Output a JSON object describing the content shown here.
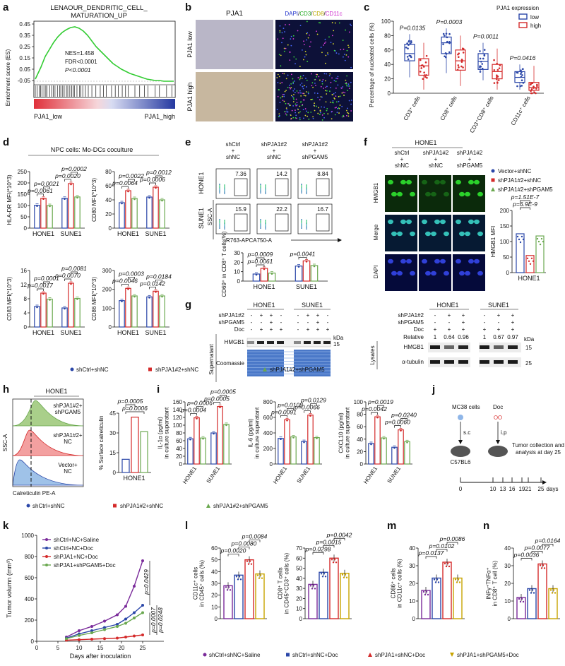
{
  "panel_letters": [
    "a",
    "b",
    "c",
    "d",
    "e",
    "f",
    "g",
    "h",
    "i",
    "j",
    "k",
    "l",
    "m",
    "n"
  ],
  "colors": {
    "blue": "#2a46a8",
    "red": "#d42a2a",
    "green": "#6aa84f",
    "purple": "#7a2a9a",
    "gsea_green": "#33cc33"
  },
  "a": {
    "title_line1": "LENAOUR_DENDRITIC_CELL_",
    "title_line2": "MATURATION_UP",
    "ylabel": "Enrichment score (ES)",
    "yticks": [
      "0.45",
      "0.35",
      "0.25",
      "0.15",
      "0.05",
      "-0.05"
    ],
    "stats": [
      "NES=1.458",
      "FDR<0.0001",
      "P<0.0001"
    ],
    "x_left": "PJA1_low",
    "x_right": "PJA1_high"
  },
  "b": {
    "title_left": "PJA1",
    "title_right_parts": [
      "DAPI",
      "/",
      "CD3",
      "/",
      "CD8",
      "/",
      "CD11c"
    ],
    "row_labels": [
      "PJA1 low",
      "PJA1 high"
    ]
  },
  "c": {
    "ylabel": "Percentage of nucleated cells (%)",
    "yticks": [
      "0",
      "20",
      "40",
      "60",
      "80",
      "100"
    ],
    "legend_title": "PJA1 expression",
    "legend": [
      "low",
      "high"
    ],
    "categories": [
      "CD3⁺ cells",
      "CD8⁺ cells",
      "CD3⁺CD8⁺ cells",
      "CD11c⁺ cells"
    ],
    "pvalues": [
      "P=0.0135",
      "P=0.0003",
      "P=0.0011",
      "P=0.0416"
    ],
    "chart_data": {
      "type": "box",
      "categories": [
        "CD3+ cells",
        "CD8+ cells",
        "CD3+CD8+ cells",
        "CD11c+ cells"
      ],
      "ylim": [
        0,
        100
      ],
      "series": [
        {
          "name": "low",
          "median": [
            55,
            70,
            44,
            22
          ],
          "q1": [
            45,
            55,
            33,
            15
          ],
          "q3": [
            68,
            78,
            55,
            30
          ],
          "min": [
            22,
            28,
            18,
            5
          ],
          "max": [
            82,
            90,
            70,
            40
          ]
        },
        {
          "name": "high",
          "median": [
            38,
            45,
            30,
            8
          ],
          "q1": [
            25,
            32,
            20,
            4
          ],
          "q3": [
            48,
            60,
            40,
            15
          ],
          "min": [
            5,
            10,
            5,
            0
          ],
          "max": [
            70,
            80,
            62,
            38
          ]
        }
      ]
    }
  },
  "d": {
    "header": "NPC cells: Mo-DCs coculture",
    "groups": [
      "HONE1",
      "SUNE1"
    ],
    "legend": [
      "shCtrl+shNC",
      "shPJA1#2+shNC",
      "shPJA1#2+shPGAM5"
    ],
    "charts": [
      {
        "ylabel": "HLA-DR MFI(*10^3)",
        "yticks": [
          "0",
          "50",
          "100",
          "150",
          "200",
          "250"
        ],
        "ylim": [
          0,
          250
        ],
        "values": [
          [
            101,
            132,
            100
          ],
          [
            132,
            197,
            138
          ]
        ],
        "pvals": [
          "p=0.0061",
          "p=0.0021",
          "p=0.0020",
          "p=0.0002"
        ]
      },
      {
        "ylabel": "CD80 MFI(*10^3)",
        "yticks": [
          "0",
          "20",
          "40",
          "60",
          "80"
        ],
        "ylim": [
          0,
          80
        ],
        "values": [
          [
            36,
            53,
            42
          ],
          [
            44,
            58,
            40
          ]
        ],
        "pvals": [
          "p=0.0064",
          "p=0.0022",
          "p=0.0006",
          "p=0.0012"
        ]
      },
      {
        "ylabel": "CD83 MFI(*10^3)",
        "yticks": [
          "0",
          "4",
          "8",
          "12",
          "16"
        ],
        "ylim": [
          0,
          16
        ],
        "values": [
          [
            5.8,
            9.6,
            7.9
          ],
          [
            5.4,
            12.4,
            8.1
          ]
        ],
        "pvals": [
          "p=0.0017",
          "p=0.0001",
          "p=0.0070",
          "p=0.0081"
        ]
      },
      {
        "ylabel": "CD86 MFI(*10^3)",
        "yticks": [
          "0",
          "100",
          "200",
          "300"
        ],
        "ylim": [
          0,
          300
        ],
        "values": [
          [
            140,
            205,
            165
          ],
          [
            160,
            190,
            165
          ]
        ],
        "pvals": [
          "p=0.0046",
          "p=0.0003",
          "p=0.0142",
          "p=0.0184"
        ]
      }
    ]
  },
  "e": {
    "columns": [
      "shCtrl\n+\nshNC",
      "shPJA1#2\n+\nshNC",
      "shPJA1#2\n+\nshPGAM5"
    ],
    "rows": [
      "HONE1",
      "SUNE1"
    ],
    "gate_values": [
      [
        "7.36",
        "14.2",
        "8.84"
      ],
      [
        "15.9",
        "22.2",
        "16.7"
      ]
    ],
    "yaxis": "SSC-A",
    "xaxis": "R763-APCA750-A",
    "bar_ylabel": "CD69⁺ in CD8⁺ T cells(%)",
    "yticks": [
      "0",
      "10",
      "20",
      "30"
    ],
    "ylim": [
      0,
      30
    ],
    "groups": [
      "HONE1",
      "SUNE1"
    ],
    "values": [
      [
        7.5,
        13.5,
        8.5
      ],
      [
        16.0,
        21.5,
        16.5
      ]
    ],
    "pvals": [
      "p=0.0009",
      "p=0.0061",
      "p=0.0041"
    ]
  },
  "f": {
    "title": "HONE1",
    "columns": [
      "shCtrl\n+\nshNC",
      "shPJA1#2\n+\nshNC",
      "shPJA1#2\n+\nshPGAM5"
    ],
    "rows": [
      "HMGB1",
      "Merge",
      "DAPI"
    ],
    "legend": [
      "Vector+shNC",
      "shPJA1#2+shNC",
      "shPJA1#2+shPGAM5"
    ],
    "ylabel": "HMGB1 MFI",
    "yticks": [
      "0",
      "50",
      "100",
      "150",
      "200"
    ],
    "ylim": [
      0,
      200
    ],
    "values": [
      125,
      55,
      118
    ],
    "pvals": [
      "p=1.51E-7",
      "p=6.9E-9"
    ],
    "group": "HONE1"
  },
  "g": {
    "left_groups": [
      "HONE1",
      "SUNE1"
    ],
    "rows": [
      "shPJA1#2",
      "shPGAM5",
      "Doc"
    ],
    "signs_left": [
      [
        "-",
        "+",
        "+",
        "-",
        "-",
        "+",
        "+",
        "-"
      ],
      [
        "-",
        "-",
        "+",
        "-",
        "-",
        "-",
        "+",
        "-"
      ],
      [
        "-",
        "+",
        "+",
        "+",
        "-",
        "+",
        "+",
        "+"
      ]
    ],
    "band_label": "HMGB1",
    "coomassie": "Coomassie",
    "supernatant": "Supernatant",
    "kda": "kDa",
    "marker_15": "15",
    "right_rows": [
      "shPJA1#2",
      "shPGAM5",
      "Doc"
    ],
    "relative_label": "Relative",
    "relative_values": [
      "1",
      "0.64",
      "0.96",
      "1",
      "0.67",
      "0.97"
    ],
    "lysates": "Lysates",
    "tubulin": "α-tubulin",
    "marker_25": "25"
  },
  "h": {
    "title": "HONE1",
    "labels": [
      "shPJA1#2+\nshPGAM5",
      "shPJA1#2+\nNC",
      "Vector+\nNC"
    ],
    "yaxis": "SSC-A",
    "xaxis": "Calreticulin  PE-A",
    "bar_ylabel": "% Surface calreticulin",
    "yticks": [
      "0",
      "15",
      "30",
      "45"
    ],
    "ylim": [
      0,
      45
    ],
    "values": [
      10,
      42,
      31
    ],
    "pvals": [
      "p=0.0005",
      "p=0.0006"
    ],
    "group": "HONE1"
  },
  "i": {
    "legend": [
      "shCtrl+shNC",
      "shPJA1#2+shNC",
      "shPJA1#2+shPGAM5"
    ],
    "groups": [
      "HONE1",
      "SUNE1"
    ],
    "charts": [
      {
        "ylabel": "IL-1α (pg/ml)\nin culture superatant",
        "yticks": [
          "0",
          "20",
          "40",
          "60",
          "80",
          "100",
          "120",
          "140",
          "160"
        ],
        "ylim": [
          0,
          160
        ],
        "values": [
          [
            65,
            119,
            67
          ],
          [
            80,
            148,
            102
          ]
        ],
        "pvals": [
          "p=0.0004",
          "p=0.0006",
          "p=0.0005",
          "p=0.0005"
        ]
      },
      {
        "ylabel": "IL-6 (pg/ml)\nin culture superatant",
        "yticks": [
          "0",
          "200",
          "400",
          "600",
          "800"
        ],
        "ylim": [
          0,
          800
        ],
        "values": [
          [
            330,
            570,
            350
          ],
          [
            290,
            630,
            340
          ]
        ],
        "pvals": [
          "p=0.0091",
          "p=0.0108",
          "p=0.0066",
          "p=0.0129"
        ]
      },
      {
        "ylabel": "CXCL10 (pg/ml)\nin culture superatant",
        "yticks": [
          "0",
          "20",
          "40",
          "60",
          "80",
          "100"
        ],
        "ylim": [
          0,
          100
        ],
        "values": [
          [
            33,
            76,
            42
          ],
          [
            27,
            55,
            36
          ]
        ],
        "pvals": [
          "p=0.0042",
          "p=0.0019",
          "p=0.0060",
          "p=0.0240"
        ]
      }
    ]
  },
  "j": {
    "mc38": "MC38 cells",
    "doc": "Doc",
    "sc": "s.c",
    "ip": "i.p",
    "mouse": "C57BL6",
    "collection": "Tumor collection and\nanalysis at day 25",
    "days": [
      "0",
      "10",
      "13",
      "16",
      "19",
      "21",
      "25"
    ],
    "days_label": "days"
  },
  "k": {
    "ylabel": "Tumor volumn (mm³)",
    "xlabel": "Days after inoculation",
    "yticks": [
      "0",
      "200",
      "400",
      "600",
      "800",
      "1000"
    ],
    "xticks": [
      "0",
      "5",
      "10",
      "15",
      "20",
      "25"
    ],
    "ylim": [
      0,
      1000
    ],
    "legend": [
      "shCtrl+NC+Saline",
      "shCtrl+NC+Doc",
      "shPJA1+NC+Doc",
      "shPJA1+shPGAM5+Doc"
    ],
    "pvals": [
      "p=0.0429",
      "p=0.0007",
      "p=0.0248"
    ],
    "chart_data": {
      "type": "line",
      "x": [
        7,
        10,
        13,
        16,
        19,
        21,
        23,
        25
      ],
      "series": [
        {
          "name": "shCtrl+NC+Saline",
          "values": [
            40,
            100,
            140,
            190,
            250,
            330,
            520,
            760
          ]
        },
        {
          "name": "shCtrl+NC+Doc",
          "values": [
            30,
            70,
            100,
            130,
            160,
            210,
            270,
            340
          ]
        },
        {
          "name": "shPJA1+NC+Doc",
          "values": [
            10,
            15,
            20,
            25,
            30,
            40,
            50,
            60
          ]
        },
        {
          "name": "shPJA1+shPGAM5+Doc",
          "values": [
            25,
            55,
            80,
            110,
            140,
            170,
            220,
            270
          ]
        }
      ]
    }
  },
  "l": {
    "charts": [
      {
        "ylabel": "CD11c⁺ cells\nin CD45⁺ cells (%)",
        "yticks": [
          "0",
          "10",
          "20",
          "30",
          "40",
          "50",
          "60"
        ],
        "ylim": [
          0,
          60
        ],
        "values": [
          28,
          37,
          50,
          38
        ],
        "pvals": [
          "p=0.0020",
          "p=0.0080",
          "p=0.0084"
        ]
      },
      {
        "ylabel": "CD8⁺ T cells\nin CD45⁺CD3⁺ cells (%)",
        "yticks": [
          "0",
          "10",
          "20",
          "30",
          "40",
          "50",
          "60",
          "70"
        ],
        "ylim": [
          0,
          70
        ],
        "values": [
          34,
          46,
          60,
          45
        ],
        "pvals": [
          "p=0.0298",
          "p=0.0015",
          "p=0.0042"
        ]
      }
    ]
  },
  "m": {
    "ylabel": "CD86⁺ cells\nin CD11c⁺ cells (%)",
    "yticks": [
      "0",
      "10",
      "20",
      "30",
      "40"
    ],
    "ylim": [
      0,
      40
    ],
    "values": [
      16,
      23,
      32,
      23
    ],
    "pvals": [
      "p=0.0137",
      "p=0.0102",
      "p=0.0086"
    ]
  },
  "n": {
    "ylabel": "INFγ⁺TNFα⁺\nin CD8⁺ T cell (%)",
    "yticks": [
      "0",
      "10",
      "20",
      "30",
      "40"
    ],
    "ylim": [
      0,
      40
    ],
    "values": [
      12,
      17,
      31,
      17
    ],
    "pvals": [
      "p=0.0036",
      "p=0.0077",
      "p=0.0164"
    ]
  },
  "bottom_legend": [
    "shCtrl+shNC+Saline",
    "shCtrl+shNC+Doc",
    "shPJA1+shNC+Doc",
    "shPJA1+shPGAM5+Doc"
  ]
}
